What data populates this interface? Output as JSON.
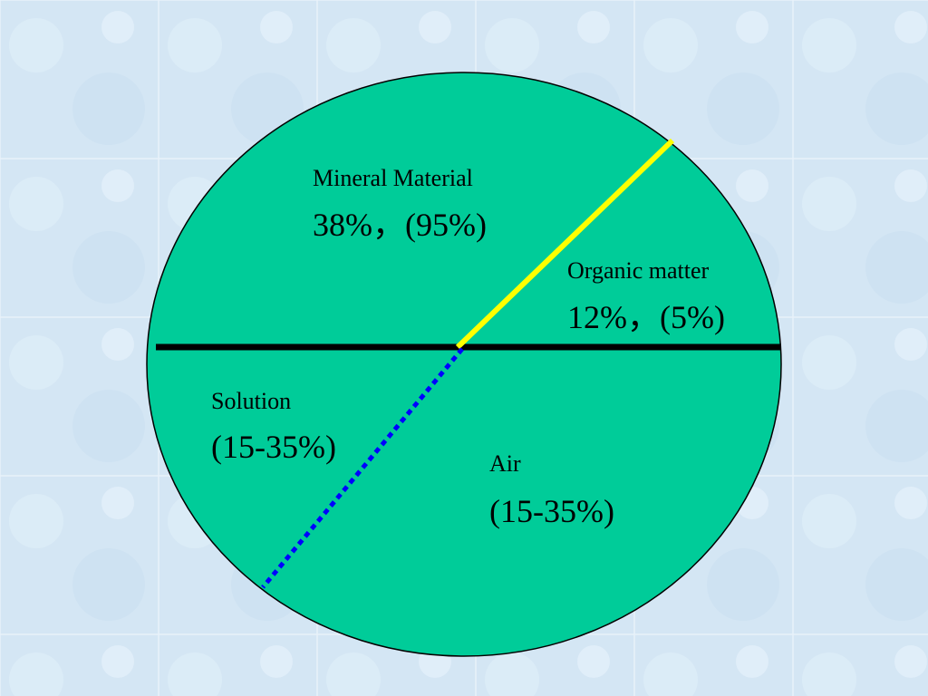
{
  "sections": [
    {
      "name": "Mineral Material",
      "value": "38%，(95%)"
    },
    {
      "name": "Organic matter",
      "value": "12%，(5%)"
    },
    {
      "name": "Solution",
      "value": "(15-35%)"
    },
    {
      "name": "Air",
      "value": "(15-35%)"
    }
  ]
}
